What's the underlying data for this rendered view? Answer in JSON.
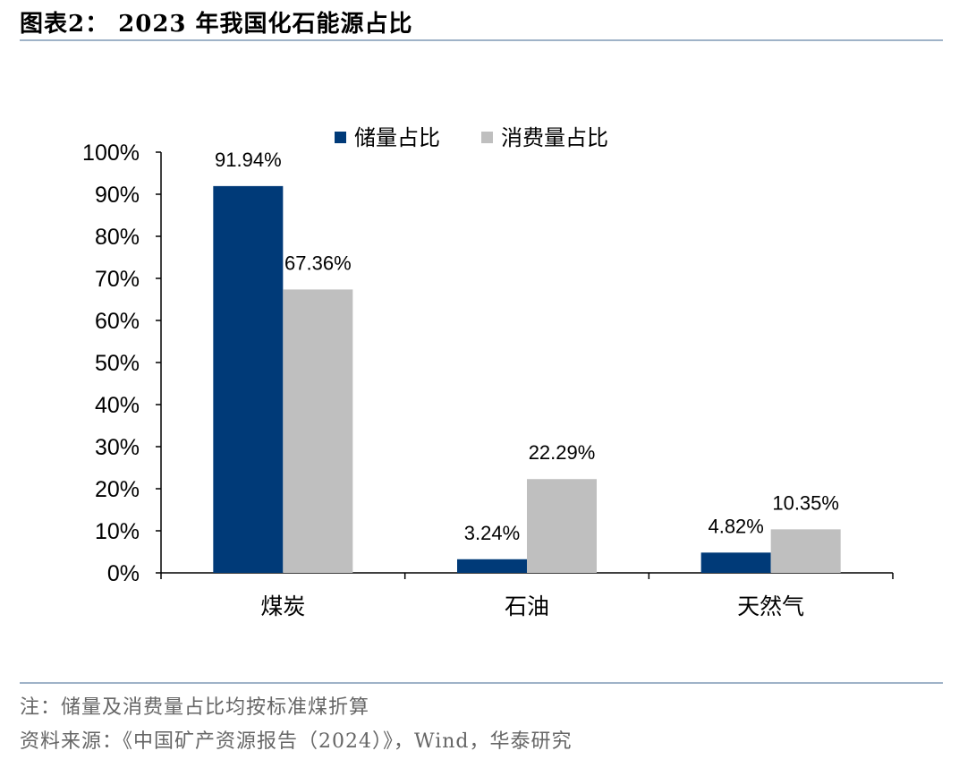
{
  "header": {
    "title": "图表2： 2023 年我国化石能源占比"
  },
  "chart_data": {
    "type": "bar",
    "categories": [
      "煤炭",
      "石油",
      "天然气"
    ],
    "series": [
      {
        "name": "储量占比",
        "values": [
          91.94,
          3.24,
          4.82
        ],
        "labels": [
          "91.94%",
          "3.24%",
          "4.82%"
        ],
        "color": "#003a78"
      },
      {
        "name": "消费量占比",
        "values": [
          67.36,
          22.29,
          10.35
        ],
        "labels": [
          "67.36%",
          "22.29%",
          "10.35%"
        ],
        "color": "#bfbfbf"
      }
    ],
    "ylim": [
      0,
      100
    ],
    "yticks": [
      "0%",
      "10%",
      "20%",
      "30%",
      "40%",
      "50%",
      "60%",
      "70%",
      "80%",
      "90%",
      "100%"
    ],
    "grid": false,
    "legend_position": "top"
  },
  "footer": {
    "note": "注：储量及消费量占比均按标准煤折算",
    "source": "资料来源：《中国矿产资源报告（2024）》，Wind，华泰研究"
  }
}
